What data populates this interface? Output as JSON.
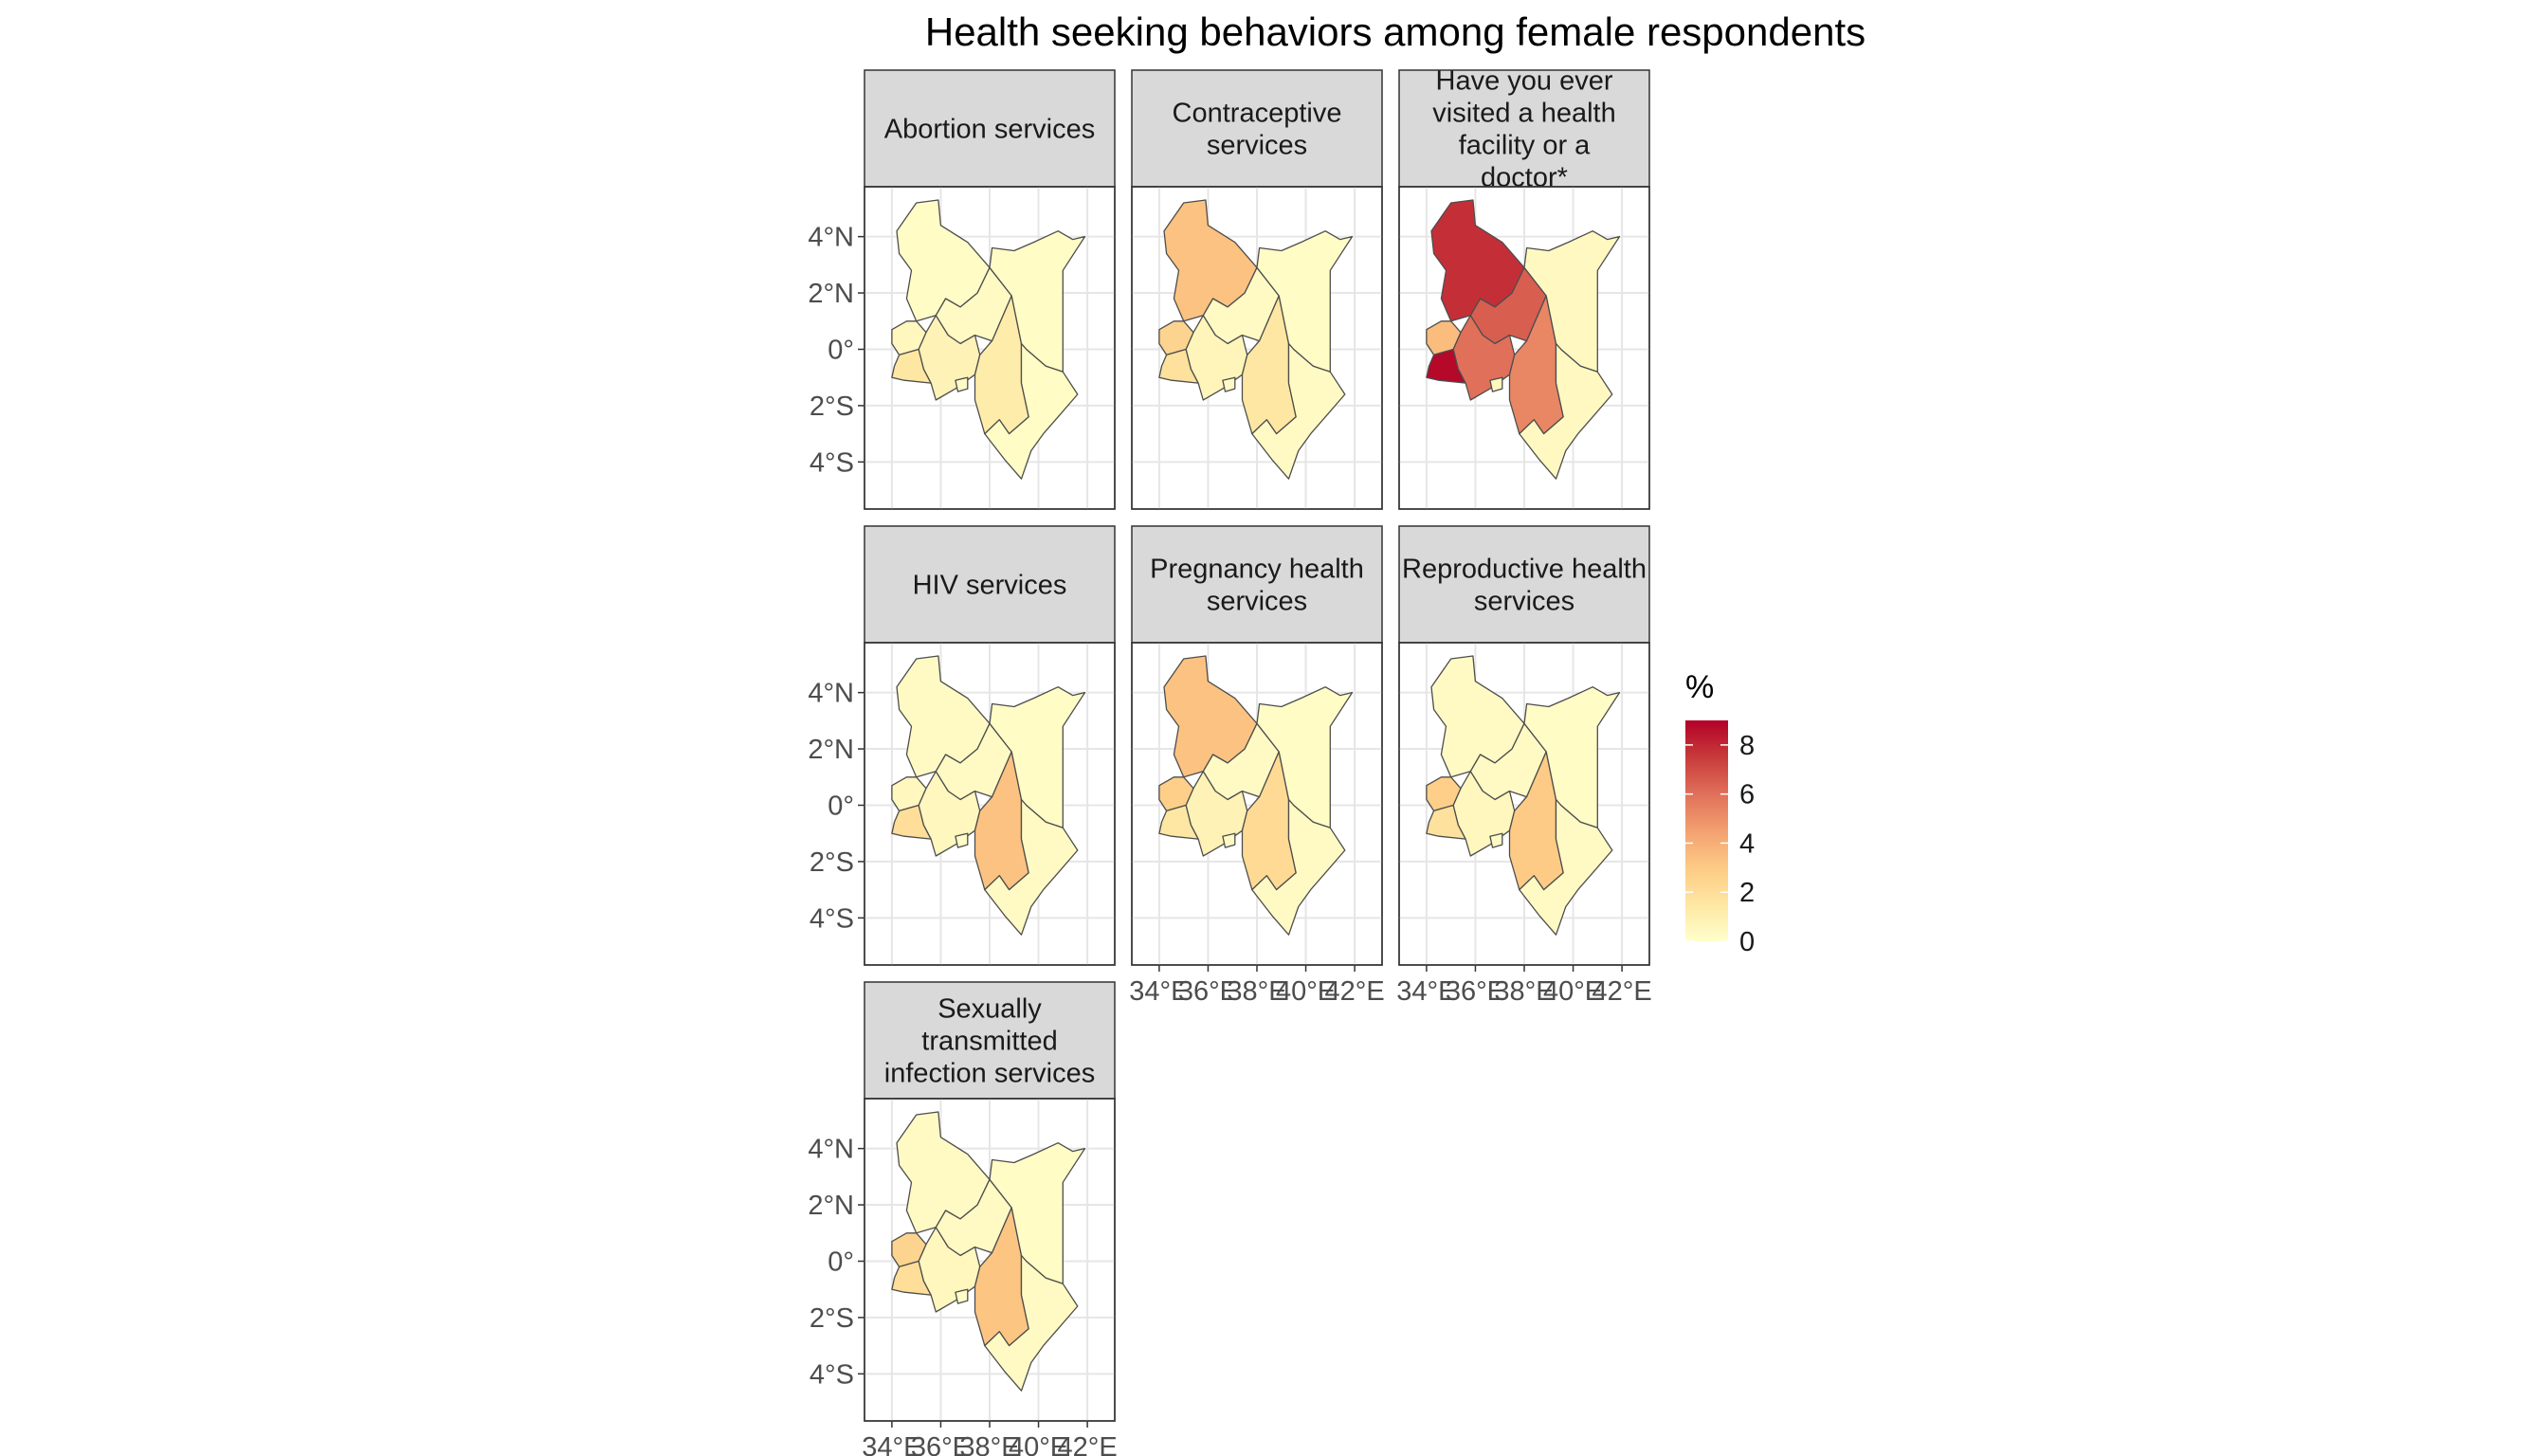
{
  "title": "Health seeking behaviors among female respondents",
  "legend": {
    "title": "%",
    "ticks": [
      0,
      2,
      4,
      6,
      8
    ],
    "min": 0,
    "max": 9,
    "colors": [
      "#FFFFCC",
      "#FEE7A2",
      "#FDCB85",
      "#F3A070",
      "#E0705A",
      "#C83B3B",
      "#B30026"
    ]
  },
  "axes": {
    "lat_ticks": [
      "4°N",
      "2°N",
      "0°",
      "2°S",
      "4°S"
    ],
    "lon_ticks": [
      "34°E",
      "36°E",
      "38°E",
      "40°E",
      "42°E"
    ]
  },
  "chart_data": {
    "type": "map",
    "region": "Kenya",
    "panels": [
      {
        "title": "Abortion services",
        "values": {
          "north": 0.2,
          "rift": 0.3,
          "west": 0.5,
          "lake": 1.5,
          "central": 0.8,
          "nairobi": 0.2,
          "east": 1.2,
          "northeast": 0.2,
          "coast": 0.2
        }
      },
      {
        "title": "Contraceptive services",
        "values": {
          "north": 3.3,
          "rift": 0.3,
          "west": 2.5,
          "lake": 1.8,
          "central": 0.6,
          "nairobi": 0.3,
          "east": 1.5,
          "northeast": 0.2,
          "coast": 0.3
        }
      },
      {
        "title": "Have you ever visited a health facility or a doctor*",
        "values": {
          "north": 7.8,
          "rift": 6.5,
          "west": 3.5,
          "lake": 8.8,
          "central": 6.0,
          "nairobi": 0.5,
          "east": 5.3,
          "northeast": 0.4,
          "coast": 0.4
        }
      },
      {
        "title": "HIV services",
        "values": {
          "north": 0.3,
          "rift": 0.3,
          "west": 0.5,
          "lake": 2.0,
          "central": 0.5,
          "nairobi": 0.2,
          "east": 3.3,
          "northeast": 0.2,
          "coast": 0.3
        }
      },
      {
        "title": "Pregnancy health services",
        "values": {
          "north": 3.3,
          "rift": 0.3,
          "west": 2.8,
          "lake": 1.5,
          "central": 0.8,
          "nairobi": 0.3,
          "east": 2.2,
          "northeast": 0.2,
          "coast": 0.3
        }
      },
      {
        "title": "Reproductive health services",
        "values": {
          "north": 0.3,
          "rift": 0.3,
          "west": 2.8,
          "lake": 1.8,
          "central": 0.5,
          "nairobi": 0.3,
          "east": 3.0,
          "northeast": 0.2,
          "coast": 0.3
        }
      },
      {
        "title": "Sexually transmitted infection services",
        "values": {
          "north": 0.3,
          "rift": 0.3,
          "west": 2.5,
          "lake": 2.0,
          "central": 0.5,
          "nairobi": 0.2,
          "east": 3.2,
          "northeast": 0.2,
          "coast": 0.3
        }
      }
    ]
  }
}
